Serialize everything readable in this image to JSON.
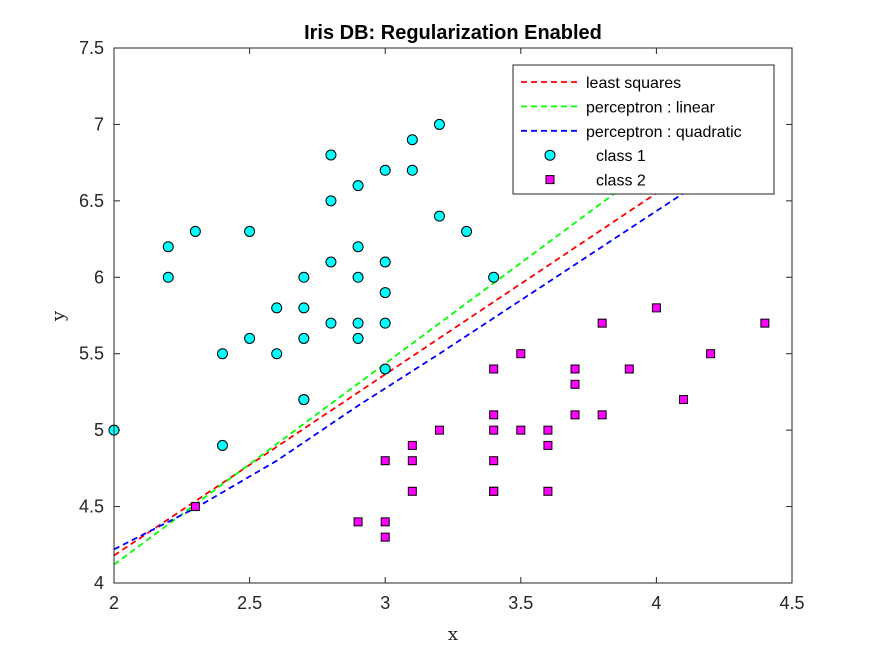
{
  "chart_data": {
    "type": "scatter",
    "title": "Iris DB: Regularization Enabled",
    "xlabel": "x",
    "ylabel": "y",
    "xlim": [
      2,
      4.5
    ],
    "ylim": [
      4,
      7.5
    ],
    "xticks": [
      "2",
      "2.5",
      "3",
      "3.5",
      "4",
      "4.5"
    ],
    "yticks": [
      "4",
      "4.5",
      "5",
      "5.5",
      "6",
      "6.5",
      "7",
      "7.5"
    ],
    "grid": false,
    "legend_position": "top-right",
    "series": [
      {
        "name": "least squares",
        "kind": "line",
        "style": "dashed",
        "color": "#ff0000",
        "x": [
          2,
          4
        ],
        "y": [
          4.18,
          6.55
        ]
      },
      {
        "name": "perceptron : linear",
        "kind": "line",
        "style": "dashed",
        "color": "#00ff00",
        "x": [
          2,
          3.9
        ],
        "y": [
          4.12,
          6.62
        ]
      },
      {
        "name": "perceptron : quadratic",
        "kind": "line",
        "style": "dashed",
        "color": "#0000ff",
        "x": [
          2,
          2.3,
          2.6,
          2.9,
          3.2,
          3.5,
          3.8,
          4.1
        ],
        "y": [
          4.22,
          4.49,
          4.8,
          5.16,
          5.5,
          5.85,
          6.2,
          6.55
        ]
      },
      {
        "name": "class 1",
        "kind": "marker",
        "marker": "circle",
        "color": "#00ffff",
        "x": [
          2.0,
          2.2,
          2.2,
          2.3,
          2.4,
          2.4,
          2.5,
          2.5,
          2.6,
          2.6,
          2.7,
          2.7,
          2.7,
          2.7,
          2.7,
          2.8,
          2.8,
          2.8,
          2.8,
          2.9,
          2.9,
          2.9,
          2.9,
          2.9,
          3.0,
          3.0,
          3.0,
          3.0,
          3.0,
          3.1,
          3.1,
          3.2,
          3.2,
          3.3,
          3.4
        ],
        "y": [
          5.0,
          6.2,
          6.0,
          6.3,
          5.5,
          4.9,
          6.3,
          5.6,
          5.8,
          5.5,
          6.0,
          5.8,
          5.6,
          5.2,
          5.2,
          6.8,
          6.5,
          6.1,
          5.7,
          6.6,
          6.2,
          6.0,
          5.7,
          5.6,
          6.7,
          6.1,
          5.9,
          5.7,
          5.4,
          6.9,
          6.7,
          7.0,
          6.4,
          6.3,
          6.0
        ]
      },
      {
        "name": "class 2",
        "kind": "marker",
        "marker": "square",
        "color": "#ff00ff",
        "x": [
          2.3,
          2.9,
          3.0,
          3.0,
          3.0,
          3.1,
          3.1,
          3.1,
          3.2,
          3.4,
          3.4,
          3.4,
          3.4,
          3.4,
          3.4,
          3.5,
          3.5,
          3.6,
          3.6,
          3.6,
          3.7,
          3.7,
          3.7,
          3.8,
          3.8,
          3.9,
          4.0,
          4.1,
          4.2,
          4.4
        ],
        "y": [
          4.5,
          4.4,
          4.4,
          4.3,
          4.8,
          4.9,
          4.8,
          4.6,
          5.0,
          5.4,
          5.1,
          5.0,
          4.8,
          4.6,
          4.6,
          5.5,
          5.0,
          5.0,
          4.9,
          4.6,
          5.4,
          5.3,
          5.1,
          5.7,
          5.1,
          5.4,
          5.8,
          5.2,
          5.5,
          5.7
        ]
      }
    ]
  }
}
